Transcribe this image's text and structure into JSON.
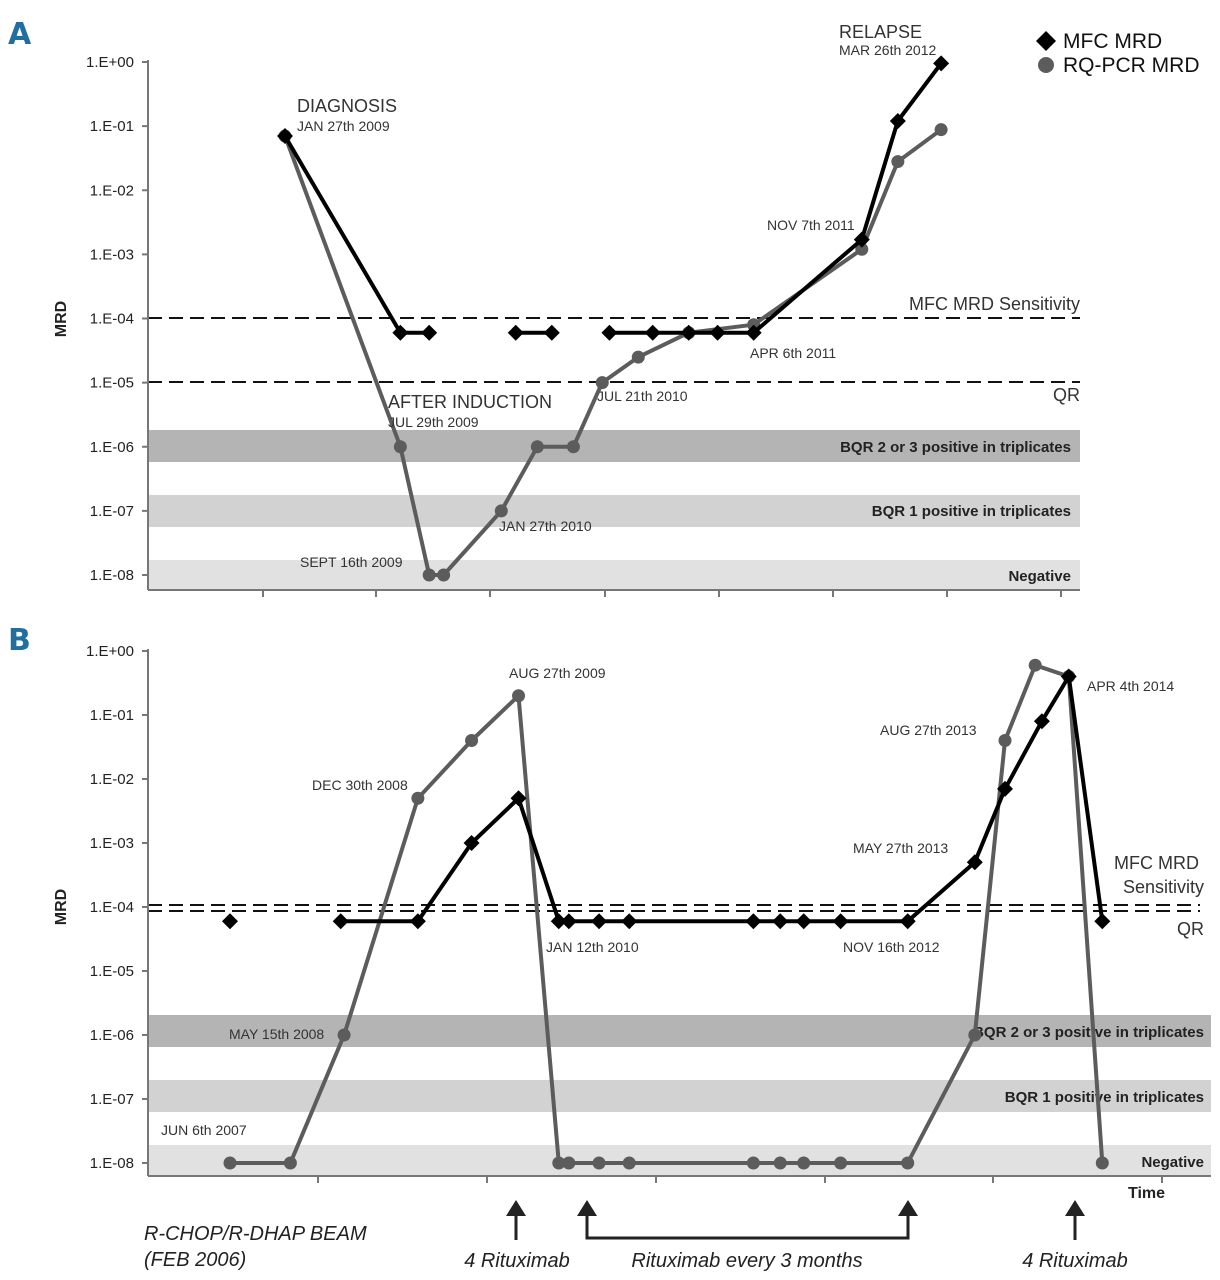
{
  "figure": {
    "legend": [
      {
        "label": "MFC MRD",
        "marker": "diamond",
        "color": "#000000"
      },
      {
        "label": "RQ-PCR MRD",
        "marker": "circle",
        "color": "#5c5c5c"
      }
    ],
    "bottom_annotations": {
      "therapy_line1": "R-CHOP/R-DHAP BEAM",
      "therapy_line2": "(FEB 2006)",
      "rituximab_first": "4 Rituximab",
      "rituximab_maintenance": "Rituximab every 3 months",
      "rituximab_last": "4 Rituximab"
    }
  },
  "chart_data": [
    {
      "panel": "A",
      "type": "line",
      "ylabel": "MRD",
      "xlabel": "",
      "yscale": "log",
      "ylim": [
        1e-08,
        1
      ],
      "yticks": [
        "1.E+00",
        "1.E-01",
        "1.E-02",
        "1.E-03",
        "1.E-04",
        "1.E-05",
        "1.E-06",
        "1.E-07",
        "1.E-08"
      ],
      "bands": [
        {
          "label": "BQR 2 or 3 positive in triplicates",
          "level": 1e-06,
          "shade": "#b4b4b4"
        },
        {
          "label": "BQR 1 positive in triplicates",
          "level": 1e-07,
          "shade": "#d2d2d2"
        },
        {
          "label": "Negative",
          "level": 1e-08,
          "shade": "#e1e1e1"
        }
      ],
      "thresholds": [
        {
          "label": "MFC MRD Sensitivity",
          "value": 0.0001
        },
        {
          "label": "QR",
          "value": 1e-05
        }
      ],
      "annotations": {
        "diagnosis": {
          "title": "DIAGNOSIS",
          "date": "JAN 27th 2009"
        },
        "after_induction": {
          "title": "AFTER INDUCTION",
          "date": "JUL 29th 2009"
        },
        "sept": {
          "date": "SEPT 16th 2009"
        },
        "jan2010": {
          "date": "JAN 27th 2010"
        },
        "jul2010": {
          "date": "JUL 21th 2010"
        },
        "apr2011": {
          "date": "APR 6th 2011"
        },
        "nov2011": {
          "date": "NOV 7th 2011"
        },
        "relapse": {
          "title": "RELAPSE",
          "date": "MAR 26th 2012"
        }
      },
      "series": [
        {
          "name": "MFC MRD",
          "marker": "diamond",
          "segments": [
            [
              [
                0.0,
                0.07
              ],
              [
                1.6,
                6e-05
              ],
              [
                2.0,
                6e-05
              ]
            ],
            [
              [
                3.2,
                6e-05
              ],
              [
                3.7,
                6e-05
              ]
            ],
            [
              [
                4.5,
                6e-05
              ],
              [
                5.1,
                6e-05
              ],
              [
                5.6,
                6e-05
              ],
              [
                6.0,
                6e-05
              ],
              [
                6.5,
                6e-05
              ],
              [
                8.0,
                0.0017
              ],
              [
                8.5,
                0.12
              ],
              [
                9.1,
                0.95
              ]
            ]
          ]
        },
        {
          "name": "RQ-PCR MRD",
          "marker": "circle",
          "segments": [
            [
              [
                0.0,
                0.07
              ],
              [
                1.6,
                1e-06
              ],
              [
                2.0,
                1e-08
              ],
              [
                2.2,
                1e-08
              ],
              [
                3.0,
                1e-07
              ],
              [
                3.5,
                1e-06
              ],
              [
                4.0,
                1e-06
              ],
              [
                4.4,
                1e-05
              ],
              [
                4.9,
                2.5e-05
              ],
              [
                5.6,
                6e-05
              ],
              [
                6.5,
                8e-05
              ],
              [
                8.0,
                0.0012
              ],
              [
                8.5,
                0.028
              ],
              [
                9.1,
                0.088
              ]
            ]
          ]
        }
      ]
    },
    {
      "panel": "B",
      "type": "line",
      "ylabel": "MRD",
      "xlabel": "Time",
      "yscale": "log",
      "ylim": [
        1e-08,
        1
      ],
      "yticks": [
        "1.E+00",
        "1.E-01",
        "1.E-02",
        "1.E-03",
        "1.E-04",
        "1.E-05",
        "1.E-06",
        "1.E-07",
        "1.E-08"
      ],
      "bands": [
        {
          "label": "BQR 2 or 3 positive in triplicates",
          "level": 1e-06,
          "shade": "#b4b4b4"
        },
        {
          "label": "BQR 1 positive in triplicates",
          "level": 1e-07,
          "shade": "#d2d2d2"
        },
        {
          "label": "Negative",
          "level": 1e-08,
          "shade": "#e1e1e1"
        }
      ],
      "thresholds": [
        {
          "label": "MFC MRD Sensitivity",
          "value": 0.0001,
          "double_line": true
        },
        {
          "label": "QR",
          "value": 0.0001
        }
      ],
      "annotations": {
        "jun2007": {
          "date": "JUN 6th 2007"
        },
        "may2008": {
          "date": "MAY 15th 2008"
        },
        "dec2008": {
          "date": "DEC 30th 2008"
        },
        "aug2009": {
          "date": "AUG 27th 2009"
        },
        "jan2010": {
          "date": "JAN 12th 2010"
        },
        "nov2012": {
          "date": "NOV 16th 2012"
        },
        "may2013": {
          "date": "MAY 27th 2013"
        },
        "aug2013": {
          "date": "AUG 27th 2013"
        },
        "apr2014": {
          "date": "APR 4th 2014"
        }
      },
      "series": [
        {
          "name": "MFC MRD",
          "marker": "diamond",
          "segments": [
            [
              [
                0.0,
                6e-05
              ]
            ],
            [
              [
                1.65,
                6e-05
              ],
              [
                2.8,
                6e-05
              ],
              [
                3.6,
                0.001
              ],
              [
                4.3,
                0.005
              ],
              [
                4.9,
                6e-05
              ],
              [
                5.05,
                6e-05
              ],
              [
                5.5,
                6e-05
              ],
              [
                5.95,
                6e-05
              ],
              [
                7.8,
                6e-05
              ],
              [
                8.2,
                6e-05
              ],
              [
                8.55,
                6e-05
              ],
              [
                9.1,
                6e-05
              ],
              [
                10.1,
                6e-05
              ],
              [
                11.1,
                0.0005
              ],
              [
                11.55,
                0.007
              ],
              [
                12.1,
                0.08
              ],
              [
                12.5,
                0.4
              ],
              [
                13.0,
                6e-05
              ]
            ]
          ]
        },
        {
          "name": "RQ-PCR MRD",
          "marker": "circle",
          "segments": [
            [
              [
                0.0,
                1e-08
              ],
              [
                0.9,
                1e-08
              ],
              [
                1.7,
                1e-06
              ],
              [
                2.8,
                0.005
              ],
              [
                3.6,
                0.04
              ],
              [
                4.3,
                0.2
              ],
              [
                4.9,
                1e-08
              ],
              [
                5.05,
                1e-08
              ],
              [
                5.5,
                1e-08
              ],
              [
                5.95,
                1e-08
              ],
              [
                7.8,
                1e-08
              ],
              [
                8.2,
                1e-08
              ],
              [
                8.55,
                1e-08
              ],
              [
                9.1,
                1e-08
              ],
              [
                10.1,
                1e-08
              ],
              [
                11.1,
                1e-06
              ],
              [
                11.55,
                0.04
              ],
              [
                12.0,
                0.6
              ],
              [
                12.5,
                0.4
              ],
              [
                13.0,
                1e-08
              ]
            ]
          ]
        }
      ]
    }
  ]
}
